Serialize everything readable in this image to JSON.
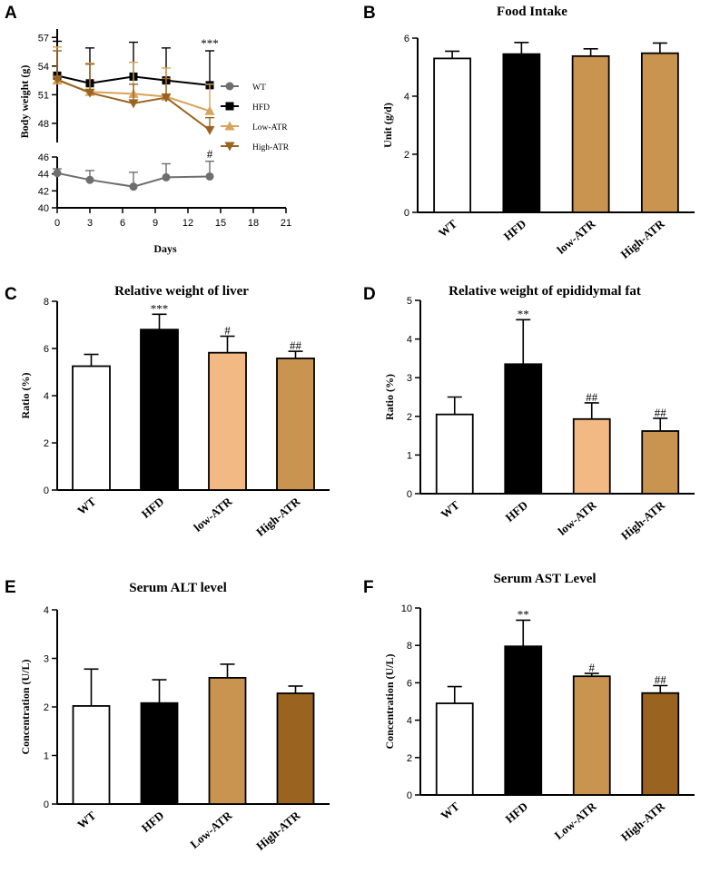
{
  "chart_data": [
    {
      "id": "A",
      "type": "line",
      "panel_label": "A",
      "title": "",
      "xlabel": "Days",
      "ylabel": "Body weight (g)",
      "x_ticks": [
        "0",
        "3",
        "6",
        "9",
        "12",
        "15",
        "18",
        "21"
      ],
      "y_ticks_upper": [
        "48",
        "51",
        "54",
        "57"
      ],
      "y_ticks_lower": [
        "40",
        "42",
        "44",
        "46"
      ],
      "xlim": [
        0,
        21
      ],
      "ylim_upper": [
        46,
        57.5
      ],
      "ylim_lower": [
        40,
        46
      ],
      "series": [
        {
          "name": "WT",
          "color": "#6e6e6e",
          "marker": "circle",
          "x": [
            0,
            3,
            7,
            10,
            14
          ],
          "y": [
            44.1,
            43.3,
            42.5,
            43.6,
            43.7
          ],
          "err": [
            0.5,
            1.1,
            1.7,
            1.6,
            1.8
          ]
        },
        {
          "name": "HFD",
          "color": "#000000",
          "marker": "square",
          "x": [
            0,
            3,
            7,
            10,
            14
          ],
          "y": [
            53.0,
            52.2,
            52.9,
            52.5,
            52.0
          ],
          "err": [
            3.6,
            3.7,
            3.6,
            3.4,
            3.6
          ]
        },
        {
          "name": "Low-ATR",
          "color": "#d9a25a",
          "marker": "triangle-up",
          "x": [
            0,
            3,
            7,
            10,
            14
          ],
          "y": [
            52.5,
            51.3,
            51.1,
            50.8,
            49.3
          ],
          "err": [
            3.5,
            3.0,
            3.3,
            3.0,
            2.8
          ]
        },
        {
          "name": "High-ATR",
          "color": "#9a6420",
          "marker": "triangle-down",
          "x": [
            0,
            3,
            7,
            10,
            14
          ],
          "y": [
            52.6,
            51.2,
            50.1,
            50.7,
            47.3
          ],
          "err": [
            3.0,
            3.0,
            2.0,
            2.0,
            1.3
          ]
        }
      ],
      "annotations": [
        {
          "text": "***",
          "x": 14,
          "y": 56.0
        },
        {
          "text": "#",
          "x": 14,
          "y": 45.9
        }
      ]
    },
    {
      "id": "B",
      "type": "bar",
      "panel_label": "B",
      "title": "Food Intake",
      "ylabel": "Unit (g/d)",
      "xlabel": "",
      "categories": [
        "WT",
        "HFD",
        "low-ATR",
        "High-ATR"
      ],
      "values": [
        5.3,
        5.45,
        5.38,
        5.48
      ],
      "errors": [
        0.25,
        0.4,
        0.25,
        0.35
      ],
      "colors": [
        "#ffffff",
        "#000000",
        "#c9944f",
        "#c9944f"
      ],
      "y_ticks": [
        "0",
        "2",
        "4",
        "6"
      ],
      "ylim": [
        0,
        6
      ],
      "annotations": [
        "",
        "",
        "",
        ""
      ]
    },
    {
      "id": "C",
      "type": "bar",
      "panel_label": "C",
      "title": "Relative weight of liver",
      "ylabel": "Ratio (%)",
      "xlabel": "",
      "categories": [
        "WT",
        "HFD",
        "low-ATR",
        "High-ATR"
      ],
      "values": [
        5.25,
        6.8,
        5.82,
        5.58
      ],
      "errors": [
        0.5,
        0.65,
        0.7,
        0.3
      ],
      "colors": [
        "#ffffff",
        "#000000",
        "#f3b985",
        "#c9944f"
      ],
      "y_ticks": [
        "0",
        "2",
        "4",
        "6",
        "8"
      ],
      "ylim": [
        0,
        8
      ],
      "annotations": [
        "",
        "***",
        "#",
        "##"
      ]
    },
    {
      "id": "D",
      "type": "bar",
      "panel_label": "D",
      "title": "Relative weight of epididymal fat",
      "ylabel": "Ratio (%)",
      "xlabel": "",
      "categories": [
        "WT",
        "HFD",
        "low-ATR",
        "High-ATR"
      ],
      "values": [
        2.05,
        3.35,
        1.93,
        1.62
      ],
      "errors": [
        0.45,
        1.15,
        0.42,
        0.33
      ],
      "colors": [
        "#ffffff",
        "#000000",
        "#f3b985",
        "#c9944f"
      ],
      "y_ticks": [
        "0",
        "1",
        "2",
        "3",
        "4",
        "5"
      ],
      "ylim": [
        0,
        5
      ],
      "annotations": [
        "",
        "**",
        "##",
        "##"
      ]
    },
    {
      "id": "E",
      "type": "bar",
      "panel_label": "E",
      "title": "Serum ALT level",
      "ylabel": "Concentration (U/L)",
      "xlabel": "",
      "categories": [
        "WT",
        "HFD",
        "Low-ATR",
        "High-ATR"
      ],
      "values": [
        2.02,
        2.08,
        2.6,
        2.28
      ],
      "errors": [
        0.76,
        0.48,
        0.28,
        0.15
      ],
      "colors": [
        "#ffffff",
        "#000000",
        "#c9944f",
        "#9a6420"
      ],
      "y_ticks": [
        "0",
        "1",
        "2",
        "3",
        "4"
      ],
      "ylim": [
        0,
        4
      ],
      "annotations": [
        "",
        "",
        "",
        ""
      ]
    },
    {
      "id": "F",
      "type": "bar",
      "panel_label": "F",
      "title": "Serum AST Level",
      "ylabel": "Concentration (U/L)",
      "xlabel": "",
      "categories": [
        "WT",
        "HFD",
        "Low-ATR",
        "High-ATR"
      ],
      "values": [
        4.9,
        7.95,
        6.35,
        5.45
      ],
      "errors": [
        0.9,
        1.4,
        0.15,
        0.4
      ],
      "colors": [
        "#ffffff",
        "#000000",
        "#c9944f",
        "#9a6420"
      ],
      "y_ticks": [
        "0",
        "2",
        "4",
        "6",
        "8",
        "10"
      ],
      "ylim": [
        0,
        10
      ],
      "annotations": [
        "",
        "**",
        "#",
        "##"
      ]
    }
  ]
}
